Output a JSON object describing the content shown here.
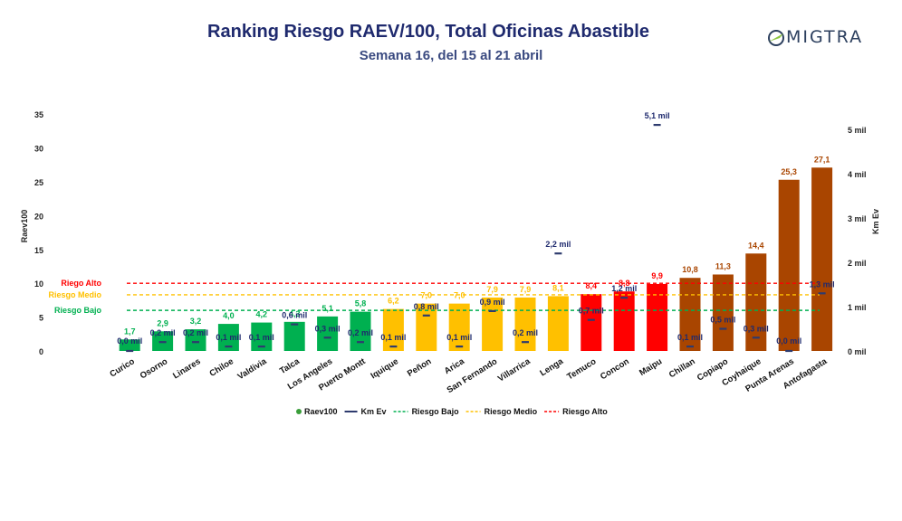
{
  "header": {
    "title": "Ranking Riesgo RAEV/100, Total Oficinas Abastible",
    "subtitle": "Semana 16, del 15 al 21 abril",
    "logo_text": "MIGTRA"
  },
  "chart_data": {
    "type": "bar",
    "title": "Ranking Riesgo RAEV/100, Total Oficinas Abastible",
    "ylabel": "Raev100",
    "y2label": "Km Ev",
    "ylim": [
      0,
      35
    ],
    "yticks": [
      "0",
      "5",
      "10",
      "15",
      "20",
      "25",
      "30",
      "35"
    ],
    "y2lim": [
      0,
      5.4
    ],
    "y2ticks": [
      "0 mil",
      "1 mil",
      "2 mil",
      "3 mil",
      "4 mil",
      "5 mil"
    ],
    "grid": false,
    "legend_position": "bottom",
    "categories": [
      "Curico",
      "Osorno",
      "Linares",
      "Chiloe",
      "Valdivia",
      "Talca",
      "Los Angeles",
      "Puerto Montt",
      "Iquique",
      "Peñon",
      "Arica",
      "San Fernando",
      "Villarrica",
      "Lenga",
      "Temuco",
      "Concon",
      "Maipu",
      "Chillan",
      "Copiapo",
      "Coyhaique",
      "Punta Arenas",
      "Antofagasta"
    ],
    "series": [
      {
        "name": "Raev100",
        "kind": "bar",
        "values": [
          1.7,
          2.9,
          3.2,
          4.0,
          4.2,
          4.3,
          5.1,
          5.8,
          6.2,
          7.0,
          7.0,
          7.9,
          7.9,
          8.1,
          8.4,
          8.8,
          9.9,
          10.8,
          11.3,
          14.4,
          25.3,
          27.1
        ],
        "labels": [
          "1,7",
          "2,9",
          "3,2",
          "4,0",
          "4,2",
          "4,3",
          "5,1",
          "5,8",
          "6,2",
          "7,0",
          "7,0",
          "7,9",
          "7,9",
          "8,1",
          "8,4",
          "8,8",
          "9,9",
          "10,8",
          "11,3",
          "14,4",
          "25,3",
          "27,1"
        ]
      },
      {
        "name": "Km Ev",
        "kind": "marker",
        "values": [
          0.0,
          0.2,
          0.2,
          0.1,
          0.1,
          0.6,
          0.3,
          0.2,
          0.1,
          0.8,
          0.1,
          0.9,
          0.2,
          2.2,
          0.7,
          1.2,
          5.1,
          0.1,
          0.5,
          0.3,
          0.0,
          1.3
        ],
        "labels": [
          "0,0 mil",
          "0,2 mil",
          "0,2 mil",
          "0,1 mil",
          "0,1 mil",
          "0,6 mil",
          "0,3 mil",
          "0,2 mil",
          "0,1 mil",
          "0,8 mil",
          "0,1 mil",
          "0,9 mil",
          "0,2 mil",
          "2,2 mil",
          "0,7 mil",
          "1,2 mil",
          "5,1 mil",
          "0,1 mil",
          "0,5 mil",
          "0,3 mil",
          "0,0 mil",
          "1,3 mil"
        ]
      }
    ],
    "thresholds": [
      {
        "name": "Riesgo Bajo",
        "axis_label": "Riesgo Bajo",
        "value": 6,
        "color": "#00b050"
      },
      {
        "name": "Riesgo Medio",
        "axis_label": "Riesgo Medio",
        "value": 8.3,
        "color": "#ffc000"
      },
      {
        "name": "Riesgo Alto",
        "axis_label": "Riego Alto",
        "value": 10,
        "color": "#ff0000"
      }
    ],
    "legend": [
      "Raev100",
      "Km Ev",
      "Riesgo Bajo",
      "Riesgo Medio",
      "Riesgo Alto"
    ],
    "colors": {
      "bajo": "#00b050",
      "medio": "#ffc000",
      "alto": "#ff0000",
      "critico": "#a94500",
      "marker": "#2e3b6e",
      "legend_dot": "#3a9e3a",
      "text_dark": "#1f2a6e"
    }
  }
}
